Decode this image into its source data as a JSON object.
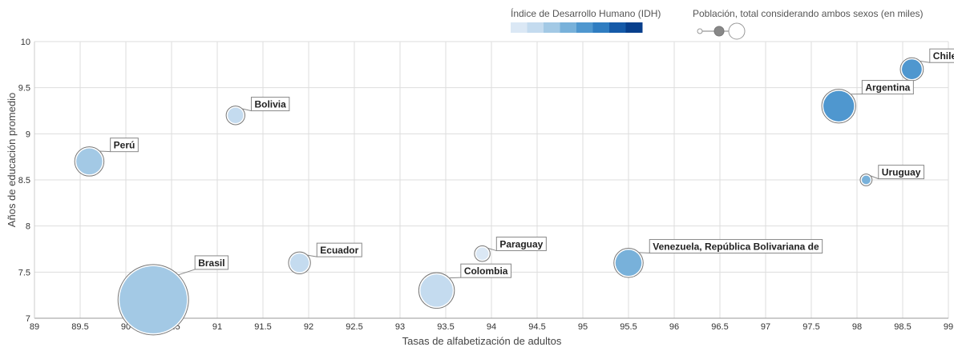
{
  "chart_data": {
    "type": "scatter",
    "title": "",
    "xlabel": "Tasas de alfabetización de adultos",
    "ylabel": "Años de educación promedio",
    "xlim": [
      89,
      99
    ],
    "ylim": [
      7,
      10
    ],
    "xticks": [
      "89",
      "89.5",
      "90",
      "90.5",
      "91",
      "91.5",
      "92",
      "92.5",
      "93",
      "93.5",
      "94",
      "94.5",
      "95",
      "95.5",
      "96",
      "96.5",
      "97",
      "97.5",
      "98",
      "98.5",
      "99"
    ],
    "yticks": [
      "7",
      "7.5",
      "8",
      "8.5",
      "9",
      "9.5",
      "10"
    ],
    "grid": true,
    "legend": {
      "placement": "top-right",
      "color_title": "Índice de Desarrollo Humano (IDH)",
      "color_scale": [
        "#dbe8f5",
        "#c4dbef",
        "#a3c9e5",
        "#78b1da",
        "#4f97cf",
        "#2f7dc1",
        "#155aa8",
        "#083f8c"
      ],
      "size_title": "Población, total considerando ambos sexos (en miles)"
    },
    "points": [
      {
        "label": "Perú",
        "x": 89.6,
        "y": 8.7,
        "population": 31000,
        "idh_level": 2
      },
      {
        "label": "Bolivia",
        "x": 91.2,
        "y": 9.2,
        "population": 11000,
        "idh_level": 1
      },
      {
        "label": "Brasil",
        "x": 90.3,
        "y": 7.2,
        "population": 207000,
        "idh_level": 2
      },
      {
        "label": "Ecuador",
        "x": 91.9,
        "y": 7.6,
        "population": 16000,
        "idh_level": 1
      },
      {
        "label": "Colombia",
        "x": 93.4,
        "y": 7.3,
        "population": 48000,
        "idh_level": 1
      },
      {
        "label": "Paraguay",
        "x": 93.9,
        "y": 7.7,
        "population": 7000,
        "idh_level": 0
      },
      {
        "label": "Venezuela, República Bolivariana de",
        "x": 95.5,
        "y": 7.6,
        "population": 31000,
        "idh_level": 3
      },
      {
        "label": "Argentina",
        "x": 97.8,
        "y": 9.3,
        "population": 43000,
        "idh_level": 4
      },
      {
        "label": "Chile",
        "x": 98.6,
        "y": 9.7,
        "population": 18000,
        "idh_level": 4
      },
      {
        "label": "Uruguay",
        "x": 98.1,
        "y": 8.5,
        "population": 3400,
        "idh_level": 3
      }
    ]
  }
}
